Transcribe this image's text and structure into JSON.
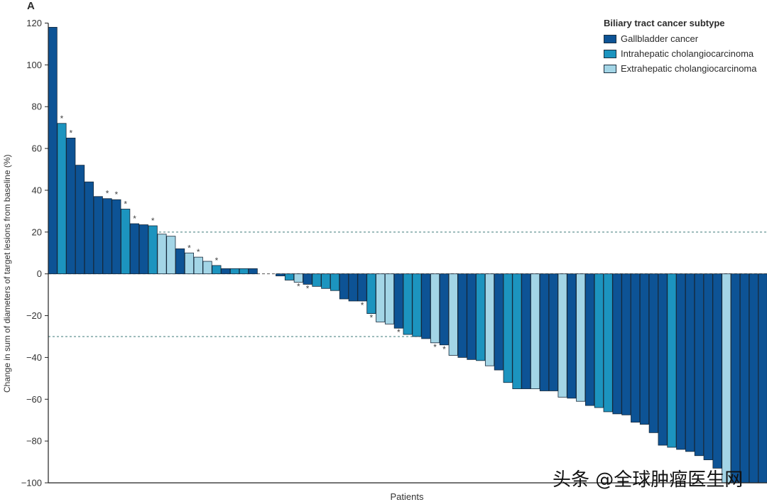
{
  "panel_label": "A",
  "watermark": "头条 @全球肿瘤医生网",
  "colors": {
    "gallbladder": "#0d5395",
    "intrahepatic": "#1c94bf",
    "extrahepatic": "#a3d5e6",
    "reference_line": "#3d7a7a"
  },
  "chart_data": {
    "type": "bar",
    "title": "",
    "xlabel": "Patients",
    "ylabel": "Change in sum of diameters of target lesions from baseline (%)",
    "ylim": [
      -100,
      120
    ],
    "yticks": [
      120,
      100,
      80,
      60,
      40,
      20,
      0,
      -20,
      -40,
      -60,
      -80,
      -100
    ],
    "reference_lines": [
      20,
      -30
    ],
    "legend": {
      "title": "Biliary tract cancer subtype",
      "position": "top-right",
      "entries": [
        {
          "key": "G",
          "label": "Gallbladder cancer"
        },
        {
          "key": "I",
          "label": "Intrahepatic cholangiocarcinoma"
        },
        {
          "key": "E",
          "label": "Extrahepatic cholangiocarcinoma"
        }
      ]
    },
    "bars": [
      {
        "v": 118,
        "t": "G"
      },
      {
        "v": 72,
        "t": "I",
        "s": true
      },
      {
        "v": 65,
        "t": "G",
        "s": true
      },
      {
        "v": 52,
        "t": "G"
      },
      {
        "v": 44,
        "t": "G"
      },
      {
        "v": 37,
        "t": "G"
      },
      {
        "v": 36,
        "t": "G",
        "s": true
      },
      {
        "v": 35.5,
        "t": "G",
        "s": true
      },
      {
        "v": 31,
        "t": "I",
        "s": true
      },
      {
        "v": 24,
        "t": "G",
        "s": true
      },
      {
        "v": 23.5,
        "t": "G"
      },
      {
        "v": 23,
        "t": "I",
        "s": true
      },
      {
        "v": 19,
        "t": "E"
      },
      {
        "v": 18,
        "t": "E"
      },
      {
        "v": 12,
        "t": "G"
      },
      {
        "v": 10,
        "t": "E",
        "s": true
      },
      {
        "v": 8,
        "t": "E",
        "s": true
      },
      {
        "v": 6,
        "t": "E"
      },
      {
        "v": 4,
        "t": "I",
        "s": true
      },
      {
        "v": 2.5,
        "t": "G"
      },
      {
        "v": 2.5,
        "t": "I"
      },
      {
        "v": 2.5,
        "t": "I"
      },
      {
        "v": 2.5,
        "t": "G"
      },
      {
        "v": 0,
        "t": "G"
      },
      {
        "v": 0,
        "t": "G"
      },
      {
        "v": -1,
        "t": "G"
      },
      {
        "v": -3,
        "t": "I"
      },
      {
        "v": -4,
        "t": "E",
        "s": true
      },
      {
        "v": -5,
        "t": "G",
        "s": true
      },
      {
        "v": -6,
        "t": "I"
      },
      {
        "v": -7,
        "t": "I"
      },
      {
        "v": -8,
        "t": "I"
      },
      {
        "v": -12,
        "t": "G"
      },
      {
        "v": -13,
        "t": "G"
      },
      {
        "v": -13,
        "t": "G",
        "s": true
      },
      {
        "v": -19,
        "t": "I",
        "s": true
      },
      {
        "v": -23,
        "t": "E"
      },
      {
        "v": -24,
        "t": "E"
      },
      {
        "v": -26,
        "t": "G",
        "s": true
      },
      {
        "v": -29,
        "t": "I"
      },
      {
        "v": -30,
        "t": "I"
      },
      {
        "v": -31,
        "t": "G"
      },
      {
        "v": -33,
        "t": "E",
        "s": true
      },
      {
        "v": -34,
        "t": "G",
        "s": true
      },
      {
        "v": -39,
        "t": "E"
      },
      {
        "v": -40,
        "t": "G"
      },
      {
        "v": -41,
        "t": "G"
      },
      {
        "v": -41.5,
        "t": "I"
      },
      {
        "v": -44,
        "t": "E"
      },
      {
        "v": -46,
        "t": "G"
      },
      {
        "v": -52,
        "t": "I"
      },
      {
        "v": -55,
        "t": "I"
      },
      {
        "v": -55,
        "t": "G"
      },
      {
        "v": -55,
        "t": "E"
      },
      {
        "v": -56,
        "t": "G"
      },
      {
        "v": -56,
        "t": "G"
      },
      {
        "v": -59,
        "t": "E"
      },
      {
        "v": -59.5,
        "t": "G"
      },
      {
        "v": -61,
        "t": "E"
      },
      {
        "v": -63,
        "t": "G"
      },
      {
        "v": -64,
        "t": "I"
      },
      {
        "v": -66,
        "t": "I"
      },
      {
        "v": -67,
        "t": "G"
      },
      {
        "v": -67.5,
        "t": "G"
      },
      {
        "v": -71,
        "t": "G"
      },
      {
        "v": -72,
        "t": "G"
      },
      {
        "v": -76,
        "t": "G"
      },
      {
        "v": -82,
        "t": "G"
      },
      {
        "v": -83,
        "t": "I"
      },
      {
        "v": -84,
        "t": "G"
      },
      {
        "v": -85,
        "t": "G"
      },
      {
        "v": -87,
        "t": "G"
      },
      {
        "v": -89,
        "t": "G"
      },
      {
        "v": -93,
        "t": "G"
      },
      {
        "v": -100,
        "t": "E"
      },
      {
        "v": -100,
        "t": "G"
      },
      {
        "v": -100,
        "t": "G"
      },
      {
        "v": -100,
        "t": "G"
      },
      {
        "v": -100,
        "t": "G"
      }
    ]
  }
}
